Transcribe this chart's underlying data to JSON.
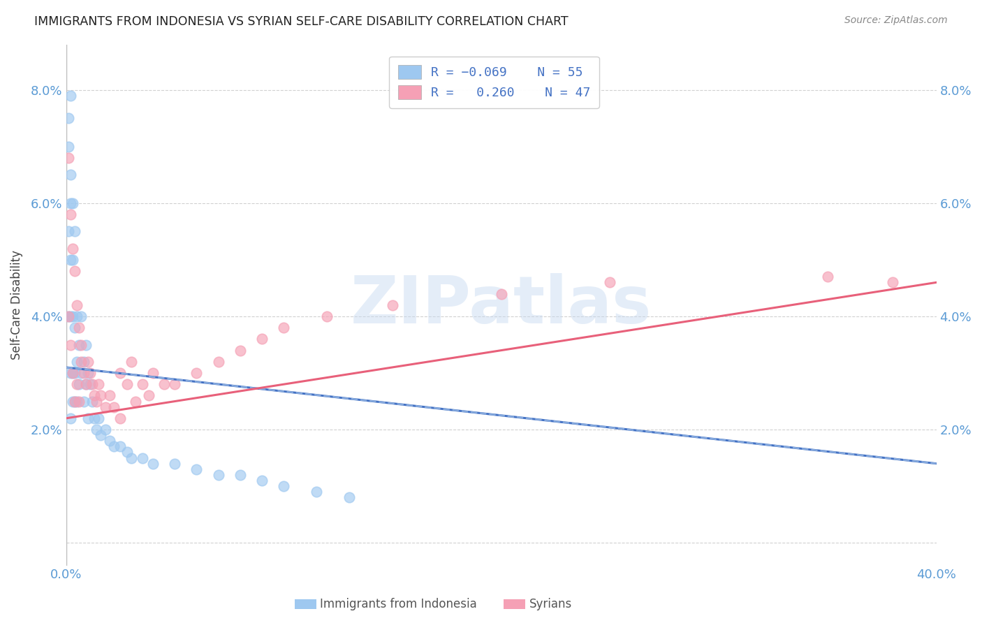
{
  "title": "IMMIGRANTS FROM INDONESIA VS SYRIAN SELF-CARE DISABILITY CORRELATION CHART",
  "source": "Source: ZipAtlas.com",
  "ylabel": "Self-Care Disability",
  "xlim": [
    0.0,
    0.4
  ],
  "ylim": [
    -0.004,
    0.088
  ],
  "yticks": [
    0.0,
    0.02,
    0.04,
    0.06,
    0.08
  ],
  "ytick_labels": [
    "",
    "2.0%",
    "4.0%",
    "6.0%",
    "8.0%"
  ],
  "xticks": [
    0.0,
    0.05,
    0.1,
    0.15,
    0.2,
    0.25,
    0.3,
    0.35,
    0.4
  ],
  "xtick_labels": [
    "0.0%",
    "",
    "",
    "",
    "",
    "",
    "",
    "",
    "40.0%"
  ],
  "color_indonesia": "#9EC8F0",
  "color_syria": "#F5A0B5",
  "color_trendline_indonesia": "#4472C4",
  "color_trendline_syria": "#E8607A",
  "color_trendline_indonesia_dashed": "#A0C0E8",
  "watermark_text": "ZIPatlas",
  "background_color": "#ffffff",
  "grid_color": "#cccccc",
  "axis_label_color": "#5B9BD5",
  "title_color": "#222222",
  "source_color": "#888888",
  "legend_label_color": "#4472C4",
  "bottom_label_color": "#555555",
  "indo_x": [
    0.001,
    0.001,
    0.001,
    0.001,
    0.002,
    0.002,
    0.002,
    0.002,
    0.002,
    0.002,
    0.002,
    0.003,
    0.003,
    0.003,
    0.003,
    0.003,
    0.004,
    0.004,
    0.004,
    0.004,
    0.005,
    0.005,
    0.005,
    0.006,
    0.006,
    0.007,
    0.007,
    0.008,
    0.008,
    0.009,
    0.009,
    0.01,
    0.01,
    0.011,
    0.012,
    0.013,
    0.014,
    0.015,
    0.016,
    0.018,
    0.02,
    0.022,
    0.025,
    0.028,
    0.03,
    0.035,
    0.04,
    0.05,
    0.06,
    0.07,
    0.08,
    0.09,
    0.1,
    0.115,
    0.13
  ],
  "indo_y": [
    0.075,
    0.07,
    0.055,
    0.04,
    0.079,
    0.065,
    0.06,
    0.05,
    0.04,
    0.03,
    0.022,
    0.06,
    0.05,
    0.04,
    0.03,
    0.025,
    0.055,
    0.038,
    0.03,
    0.025,
    0.04,
    0.032,
    0.025,
    0.035,
    0.028,
    0.04,
    0.03,
    0.032,
    0.025,
    0.035,
    0.028,
    0.03,
    0.022,
    0.028,
    0.025,
    0.022,
    0.02,
    0.022,
    0.019,
    0.02,
    0.018,
    0.017,
    0.017,
    0.016,
    0.015,
    0.015,
    0.014,
    0.014,
    0.013,
    0.012,
    0.012,
    0.011,
    0.01,
    0.009,
    0.008
  ],
  "syr_x": [
    0.001,
    0.001,
    0.002,
    0.002,
    0.003,
    0.003,
    0.004,
    0.004,
    0.005,
    0.005,
    0.006,
    0.006,
    0.007,
    0.007,
    0.008,
    0.009,
    0.01,
    0.011,
    0.012,
    0.013,
    0.014,
    0.015,
    0.016,
    0.018,
    0.02,
    0.022,
    0.025,
    0.025,
    0.028,
    0.03,
    0.032,
    0.035,
    0.038,
    0.04,
    0.045,
    0.05,
    0.06,
    0.07,
    0.08,
    0.09,
    0.1,
    0.12,
    0.15,
    0.2,
    0.25,
    0.35,
    0.38
  ],
  "syr_y": [
    0.068,
    0.04,
    0.058,
    0.035,
    0.052,
    0.03,
    0.048,
    0.025,
    0.042,
    0.028,
    0.038,
    0.025,
    0.035,
    0.032,
    0.03,
    0.028,
    0.032,
    0.03,
    0.028,
    0.026,
    0.025,
    0.028,
    0.026,
    0.024,
    0.026,
    0.024,
    0.03,
    0.022,
    0.028,
    0.032,
    0.025,
    0.028,
    0.026,
    0.03,
    0.028,
    0.028,
    0.03,
    0.032,
    0.034,
    0.036,
    0.038,
    0.04,
    0.042,
    0.044,
    0.046,
    0.047,
    0.046
  ],
  "indo_trend_x0": 0.0,
  "indo_trend_y0": 0.031,
  "indo_trend_x1": 0.4,
  "indo_trend_y1": 0.014,
  "syr_trend_x0": 0.0,
  "syr_trend_y0": 0.022,
  "syr_trend_x1": 0.4,
  "syr_trend_y1": 0.046
}
